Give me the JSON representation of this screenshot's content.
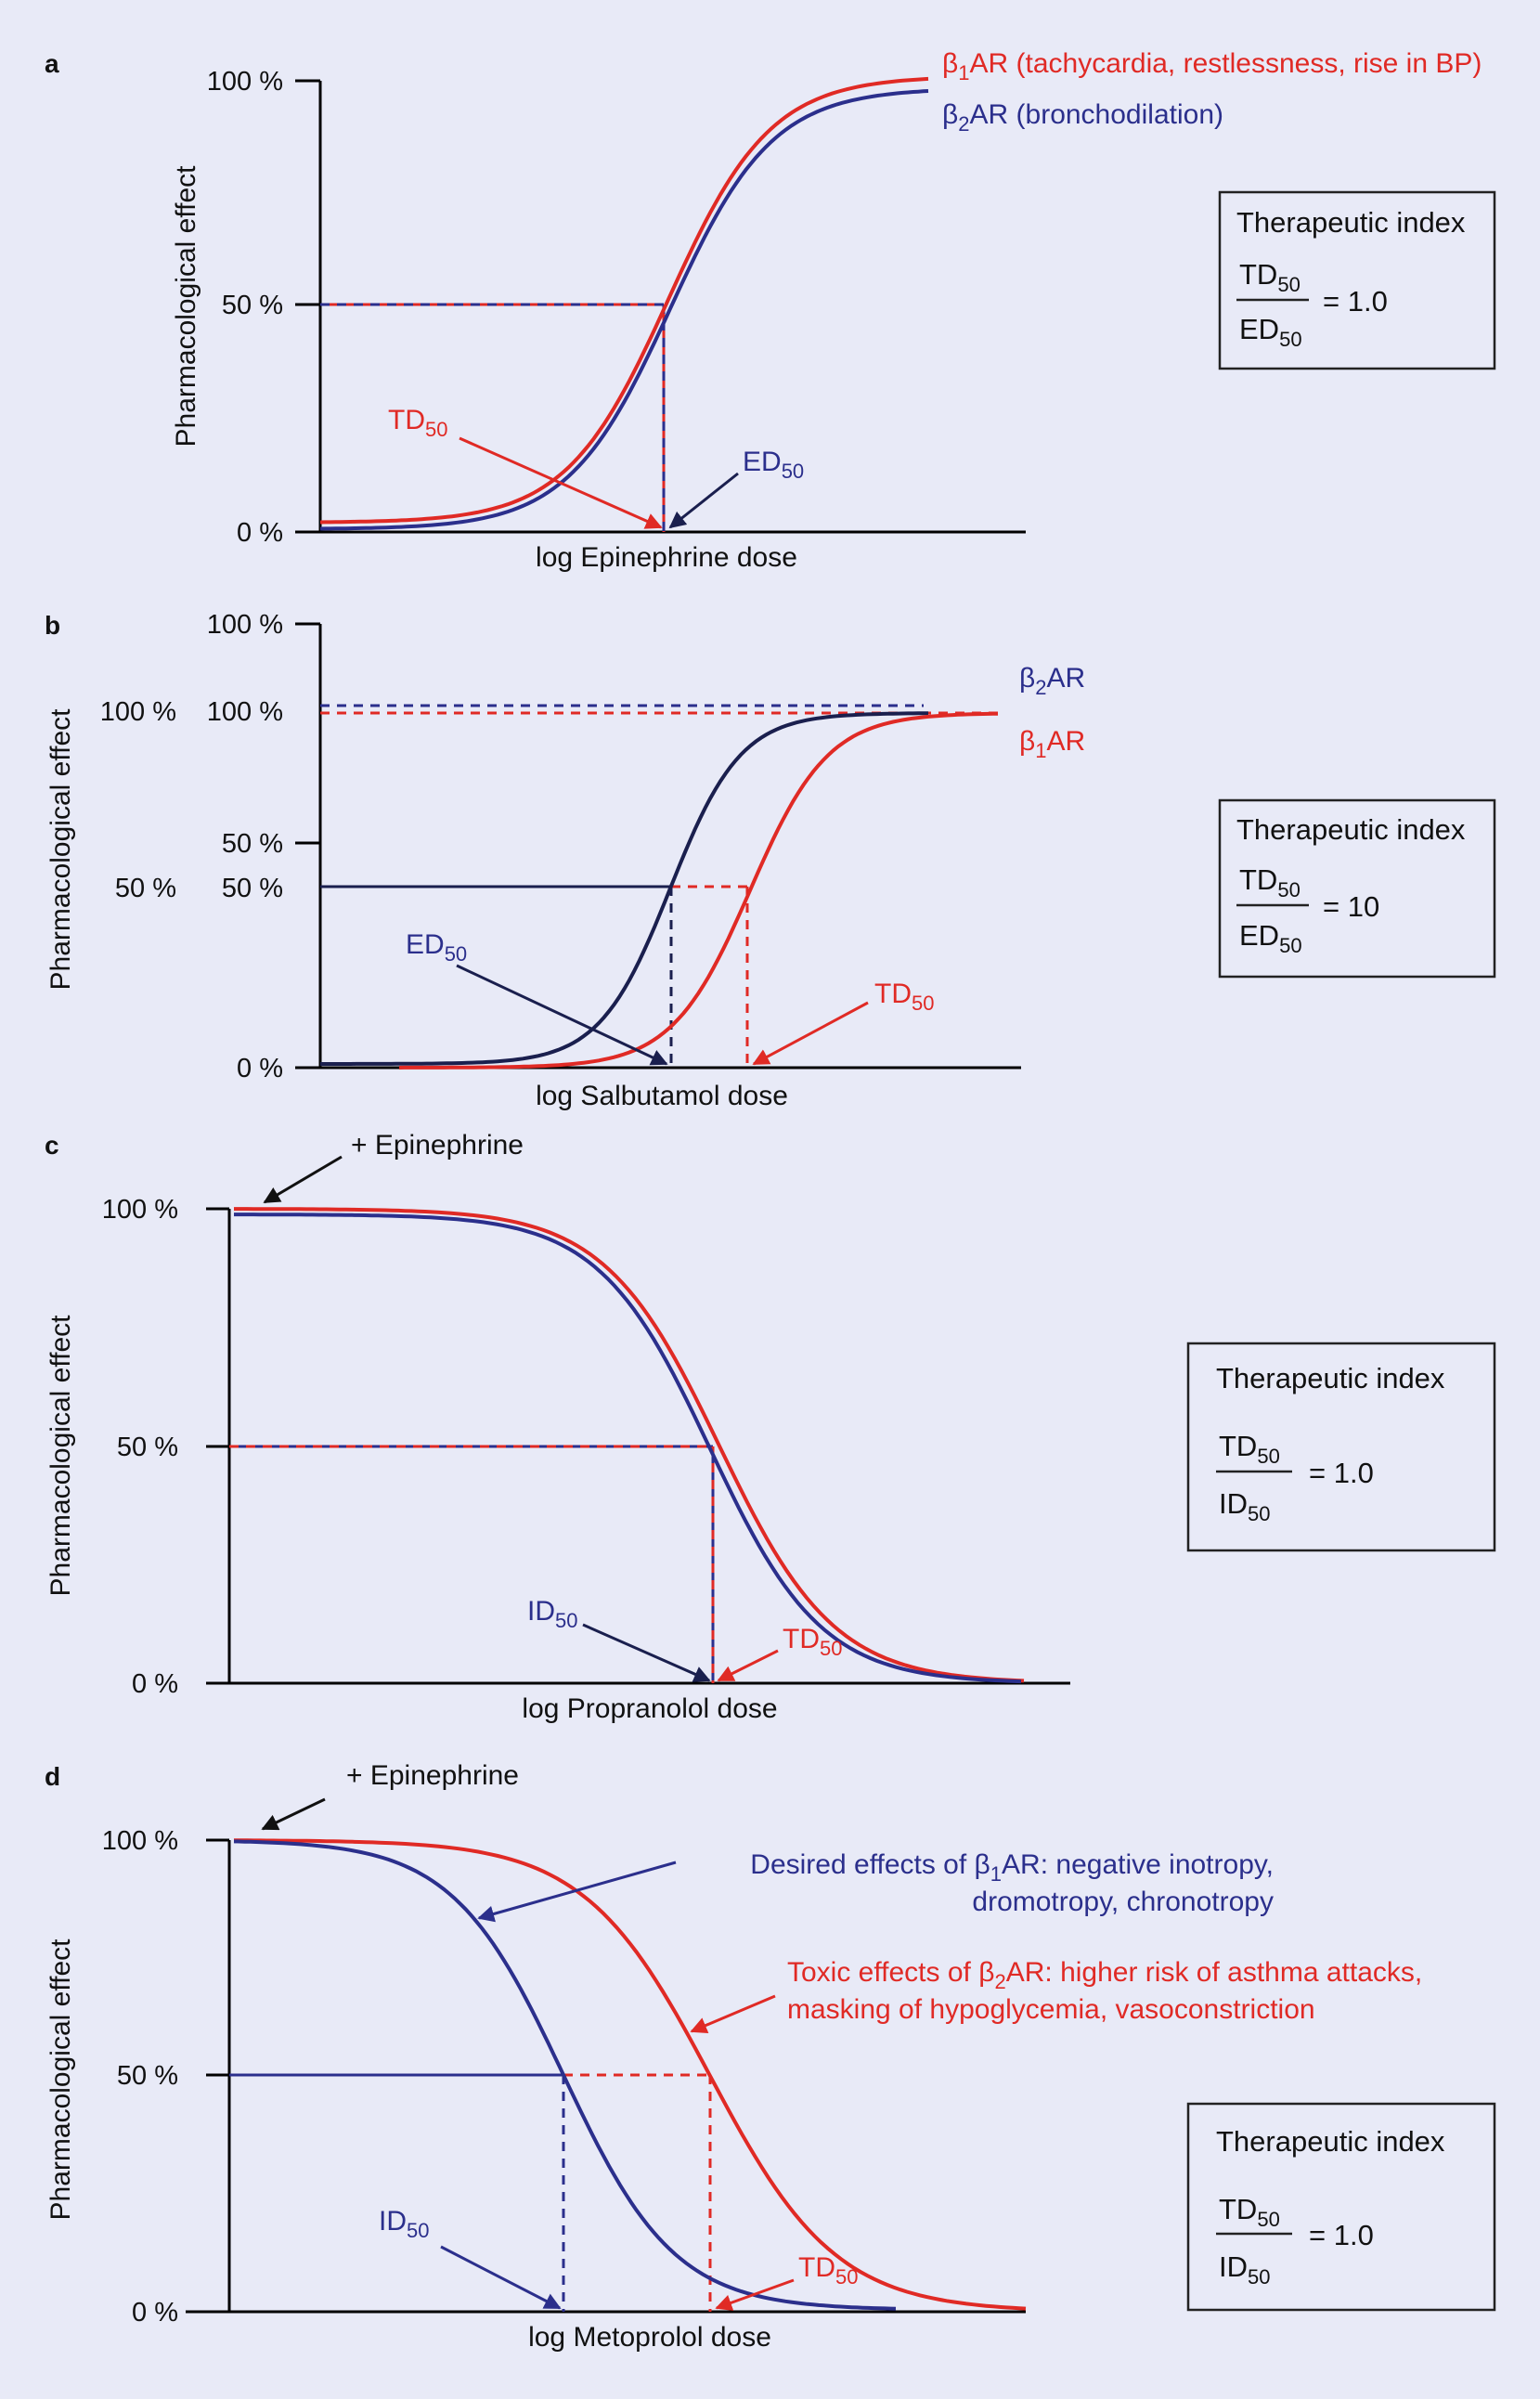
{
  "colors": {
    "red": "#e02a25",
    "blue": "#2b2f8c",
    "dark": "#1a1f4e",
    "bg": "#e8eaf7"
  },
  "chart_data": [
    {
      "panel": "a",
      "type": "line",
      "title": "",
      "xlabel": "log Epinephrine dose",
      "ylabel": "Pharmacological effect",
      "yticks": [
        "100 %",
        "50 %",
        "0 %"
      ],
      "ylim": [
        0,
        100
      ],
      "series": [
        {
          "name": "β1AR (tachycardia, restlessness, rise in BP)",
          "color": "red",
          "kind": "increasing",
          "ymin": 2,
          "ymax": 100,
          "midpoint": 0.49
        },
        {
          "name": "β2AR (bronchodilation)",
          "color": "blue",
          "kind": "increasing",
          "ymin": 0.5,
          "ymax": 98,
          "midpoint": 0.49
        }
      ],
      "legend": [
        {
          "main": "β",
          "sub": "1",
          "rest": "AR (tachycardia, restlessness, rise in BP)",
          "color": "red"
        },
        {
          "main": "β",
          "sub": "2",
          "rest": "AR (bronchodilation)",
          "color": "blue"
        }
      ],
      "labels": {
        "td": "TD",
        "ed": "ED",
        "sub50": "50"
      },
      "therapeutic_index": {
        "title": "Therapeutic index",
        "numerator": "TD",
        "denominator": "ED",
        "sub": "50",
        "value": "= 1.0"
      }
    },
    {
      "panel": "b",
      "type": "line",
      "xlabel": "log Salbutamol dose",
      "ylabel": "Pharmacological effect",
      "yticks": [
        "100 %",
        "50 %",
        "0 %"
      ],
      "extra_ticks": {
        "blue": [
          "100 %",
          "50 %"
        ],
        "red": [
          "100 %",
          "50 %"
        ]
      },
      "ylim": [
        0,
        100
      ],
      "series": [
        {
          "name": "β2AR",
          "color": "blue",
          "kind": "increasing",
          "ymin": 0,
          "ymax": 80,
          "ed50_fraction": 0.49
        },
        {
          "name": "β1AR",
          "color": "red",
          "kind": "increasing",
          "ymin": 0,
          "ymax": 80,
          "td50_fraction": 0.63
        }
      ],
      "legend": [
        {
          "main": "β",
          "sub": "2",
          "rest": "AR",
          "color": "blue"
        },
        {
          "main": "β",
          "sub": "1",
          "rest": "AR",
          "color": "red"
        }
      ],
      "labels": {
        "td": "TD",
        "ed": "ED",
        "sub50": "50"
      },
      "therapeutic_index": {
        "title": "Therapeutic index",
        "numerator": "TD",
        "denominator": "ED",
        "sub": "50",
        "value": "= 10"
      }
    },
    {
      "panel": "c",
      "type": "line",
      "xlabel": "log Propranolol dose",
      "ylabel": "Pharmacological effect",
      "yticks": [
        "100 %",
        "50 %",
        "0 %"
      ],
      "ylim": [
        0,
        100
      ],
      "annotation": "+ Epinephrine",
      "series": [
        {
          "name": "β1AR",
          "color": "red",
          "kind": "decreasing",
          "ymin": 0,
          "ymax": 100
        },
        {
          "name": "β2AR",
          "color": "blue",
          "kind": "decreasing",
          "ymin": 0,
          "ymax": 99
        }
      ],
      "labels": {
        "td": "TD",
        "id": "ID",
        "sub50": "50"
      },
      "therapeutic_index": {
        "title": "Therapeutic index",
        "numerator": "TD",
        "denominator": "ID",
        "sub": "50",
        "value": "= 1.0"
      }
    },
    {
      "panel": "d",
      "type": "line",
      "xlabel": "log Metoprolol dose",
      "ylabel": "Pharmacological effect",
      "yticks": [
        "100 %",
        "50 %",
        "0 %"
      ],
      "ylim": [
        0,
        100
      ],
      "annotation": "+ Epinephrine",
      "series": [
        {
          "name": "β1AR",
          "color": "blue",
          "kind": "decreasing",
          "ymin": 0,
          "ymax": 100
        },
        {
          "name": "β2AR",
          "color": "red",
          "kind": "decreasing",
          "ymin": 0,
          "ymax": 100
        }
      ],
      "desired": {
        "line1_pre": "Desired effects of β",
        "line1_sub": "1",
        "line1_post": "AR: negative inotropy,",
        "line2": "dromotropy, chronotropy"
      },
      "toxic": {
        "line1_pre": "Toxic effects of β",
        "line1_sub": "2",
        "line1_post": "AR: higher risk of asthma attacks,",
        "line2": "masking of hypoglycemia, vasoconstriction"
      },
      "labels": {
        "td": "TD",
        "id": "ID",
        "sub50": "50"
      },
      "therapeutic_index": {
        "title": "Therapeutic index",
        "numerator": "TD",
        "denominator": "ID",
        "sub": "50",
        "value": "= 1.0"
      }
    }
  ]
}
